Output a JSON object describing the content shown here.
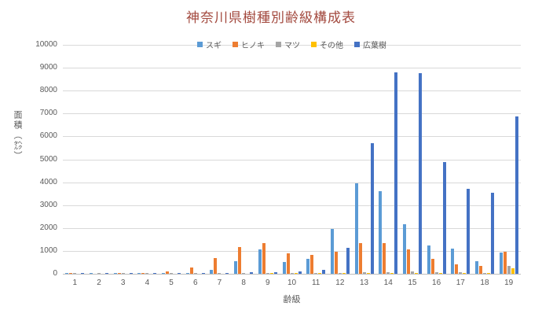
{
  "title": "神奈川県樹種別齢級構成表",
  "title_color": "#A34A3F",
  "axis_text_color": "#595959",
  "gridline_color": "#D9D9D9",
  "chart_data": {
    "type": "bar",
    "title": "神奈川県樹種別齢級構成表",
    "xlabel": "齢級",
    "ylabel": "面積（㌶）",
    "ylim": [
      0,
      10000
    ],
    "ytick_step": 1000,
    "grid": true,
    "legend_position": "top",
    "categories": [
      "1",
      "2",
      "3",
      "4",
      "5",
      "6",
      "7",
      "8",
      "9",
      "10",
      "11",
      "12",
      "13",
      "14",
      "15",
      "16",
      "17",
      "18",
      "19"
    ],
    "series": [
      {
        "name": "スギ",
        "color": "#5B9BD5",
        "values": [
          20,
          10,
          10,
          20,
          20,
          30,
          170,
          550,
          1050,
          520,
          650,
          1950,
          3950,
          3600,
          2180,
          1240,
          1100,
          550,
          930
        ]
      },
      {
        "name": "ヒノキ",
        "color": "#ED7D31",
        "values": [
          10,
          0,
          20,
          40,
          90,
          270,
          690,
          1170,
          1330,
          880,
          830,
          960,
          1330,
          1330,
          1050,
          640,
          410,
          340,
          960
        ]
      },
      {
        "name": "マツ",
        "color": "#A5A5A5",
        "values": [
          10,
          10,
          20,
          30,
          30,
          20,
          30,
          40,
          50,
          40,
          40,
          50,
          60,
          70,
          120,
          60,
          60,
          30,
          330
        ]
      },
      {
        "name": "その他",
        "color": "#FFC000",
        "values": [
          0,
          0,
          0,
          0,
          0,
          0,
          0,
          0,
          10,
          10,
          10,
          10,
          20,
          20,
          20,
          20,
          20,
          10,
          250
        ]
      },
      {
        "name": "広葉樹",
        "color": "#4472C4",
        "values": [
          20,
          10,
          10,
          20,
          30,
          40,
          50,
          60,
          80,
          90,
          170,
          1130,
          5700,
          8800,
          8750,
          4880,
          3700,
          3540,
          6870
        ]
      }
    ]
  }
}
